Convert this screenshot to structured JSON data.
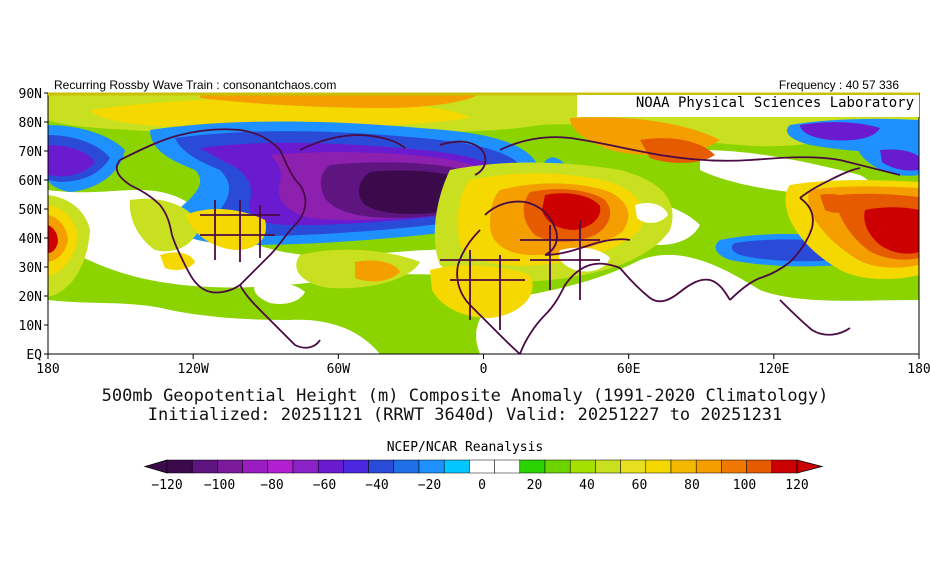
{
  "header": {
    "left_text": "Recurring Rossby Wave Train : consonantchaos.com",
    "right_text": "Frequency : 40 57 336",
    "org_label": "NOAA Physical Sciences Laboratory"
  },
  "map": {
    "lat_labels": [
      "90N",
      "80N",
      "70N",
      "60N",
      "50N",
      "40N",
      "30N",
      "20N",
      "10N",
      "EQ"
    ],
    "lon_labels": [
      "180",
      "120W",
      "60W",
      "0",
      "60E",
      "120E",
      "180"
    ],
    "colors": {
      "n120": "#3a0a4a",
      "n100": "#5e1580",
      "n80": "#8e20b0",
      "n60": "#6a1bd0",
      "n40": "#2a4bd8",
      "n20": "#1e90ff",
      "zero": "#ffffff",
      "p20": "#8bd400",
      "p40": "#c8e020",
      "p60": "#f5d800",
      "p80": "#f59e00",
      "p100": "#e65a00",
      "p120": "#cc0000",
      "coast": "#4b0b45"
    }
  },
  "titles": {
    "line1": "500mb Geopotential Height (m) Composite Anomaly (1991-2020 Climatology)",
    "line2": "Initialized: 20251121 (RRWT 3640d) Valid: 20251227 to 20251231"
  },
  "colorbar": {
    "label": "NCEP/NCAR Reanalysis",
    "colors": [
      "#3a0a4a",
      "#5e1580",
      "#7a1a9a",
      "#9b1cc0",
      "#b020d0",
      "#8a22c8",
      "#6a1bd0",
      "#4b28e0",
      "#2a4bd8",
      "#1e6fe8",
      "#1e90ff",
      "#00c8ff",
      "#ffffff",
      "#ffffff",
      "#2ad400",
      "#6ed400",
      "#a4e000",
      "#c8e020",
      "#e6e020",
      "#f5d800",
      "#f5b800",
      "#f59e00",
      "#f07800",
      "#e65a00",
      "#cc0000"
    ],
    "tick_labels": [
      "-120",
      "-100",
      "-80",
      "-60",
      "-40",
      "-20",
      "0",
      "20",
      "40",
      "60",
      "80",
      "100",
      "120"
    ]
  }
}
